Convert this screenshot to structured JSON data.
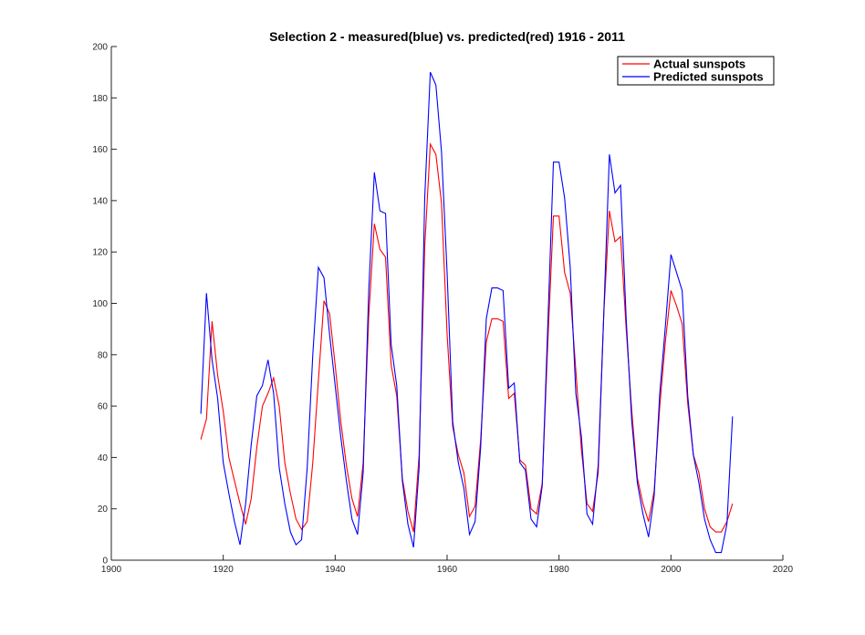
{
  "chart_data": {
    "type": "line",
    "title": "Selection 2 - measured(blue) vs. predicted(red) 1916 - 2011",
    "xlabel": "",
    "ylabel": "",
    "xlim": [
      1900,
      2020
    ],
    "ylim": [
      0,
      200
    ],
    "xticks": [
      1900,
      1920,
      1940,
      1960,
      1980,
      2000,
      2020
    ],
    "yticks": [
      0,
      20,
      40,
      60,
      80,
      100,
      120,
      140,
      160,
      180,
      200
    ],
    "grid": false,
    "legend_position": "top-right",
    "colors": {
      "red": "#ff0000",
      "blue": "#0000ff",
      "axis": "#262626"
    },
    "series": [
      {
        "name": "Actual sunspots",
        "color": "red",
        "x": [
          1916,
          1917,
          1918,
          1919,
          1920,
          1921,
          1922,
          1923,
          1924,
          1925,
          1926,
          1927,
          1928,
          1929,
          1930,
          1931,
          1932,
          1933,
          1934,
          1935,
          1936,
          1937,
          1938,
          1939,
          1940,
          1941,
          1942,
          1943,
          1944,
          1945,
          1946,
          1947,
          1948,
          1949,
          1950,
          1951,
          1952,
          1953,
          1954,
          1955,
          1956,
          1957,
          1958,
          1959,
          1960,
          1961,
          1962,
          1963,
          1964,
          1965,
          1966,
          1967,
          1968,
          1969,
          1970,
          1971,
          1972,
          1973,
          1974,
          1975,
          1976,
          1977,
          1978,
          1979,
          1980,
          1981,
          1982,
          1983,
          1984,
          1985,
          1986,
          1987,
          1988,
          1989,
          1990,
          1991,
          1992,
          1993,
          1994,
          1995,
          1996,
          1997,
          1998,
          1999,
          2000,
          2001,
          2002,
          2003,
          2004,
          2005,
          2006,
          2007,
          2008,
          2009,
          2010,
          2011
        ],
        "values": [
          47,
          55,
          93,
          72,
          58,
          40,
          31,
          22,
          14,
          24,
          44,
          60,
          65,
          71,
          60,
          38,
          26,
          16,
          12,
          15,
          38,
          70,
          101,
          96,
          76,
          54,
          37,
          24,
          17,
          38,
          95,
          131,
          121,
          118,
          76,
          64,
          32,
          19,
          11,
          41,
          122,
          162,
          158,
          139,
          88,
          52,
          41,
          34,
          17,
          21,
          47,
          85,
          94,
          94,
          93,
          63,
          65,
          39,
          37,
          20,
          18,
          30,
          85,
          134,
          134,
          112,
          104,
          74,
          43,
          22,
          19,
          34,
          96,
          136,
          124,
          126,
          90,
          58,
          32,
          22,
          15,
          27,
          60,
          85,
          105,
          99,
          92,
          61,
          41,
          34,
          20,
          13,
          11,
          11,
          15,
          22
        ]
      },
      {
        "name": "Predicted sunspots",
        "color": "blue",
        "x": [
          1916,
          1917,
          1918,
          1919,
          1920,
          1921,
          1922,
          1923,
          1924,
          1925,
          1926,
          1927,
          1928,
          1929,
          1930,
          1931,
          1932,
          1933,
          1934,
          1935,
          1936,
          1937,
          1938,
          1939,
          1940,
          1941,
          1942,
          1943,
          1944,
          1945,
          1946,
          1947,
          1948,
          1949,
          1950,
          1951,
          1952,
          1953,
          1954,
          1955,
          1956,
          1957,
          1958,
          1959,
          1960,
          1961,
          1962,
          1963,
          1964,
          1965,
          1966,
          1967,
          1968,
          1969,
          1970,
          1971,
          1972,
          1973,
          1974,
          1975,
          1976,
          1977,
          1978,
          1979,
          1980,
          1981,
          1982,
          1983,
          1984,
          1985,
          1986,
          1987,
          1988,
          1989,
          1990,
          1991,
          1992,
          1993,
          1994,
          1995,
          1996,
          1997,
          1998,
          1999,
          2000,
          2001,
          2002,
          2003,
          2004,
          2005,
          2006,
          2007,
          2008,
          2009,
          2010,
          2011
        ],
        "values": [
          57,
          104,
          78,
          63,
          38,
          26,
          15,
          6,
          22,
          45,
          64,
          68,
          78,
          65,
          36,
          22,
          11,
          6,
          8,
          36,
          80,
          114,
          110,
          88,
          68,
          48,
          31,
          16,
          10,
          34,
          105,
          151,
          136,
          135,
          84,
          68,
          31,
          14,
          5,
          36,
          141,
          190,
          185,
          159,
          112,
          54,
          38,
          28,
          10,
          15,
          44,
          94,
          106,
          106,
          105,
          67,
          69,
          38,
          35,
          16,
          13,
          29,
          92,
          155,
          155,
          141,
          114,
          65,
          48,
          18,
          14,
          37,
          96,
          158,
          143,
          146,
          94,
          54,
          30,
          18,
          9,
          25,
          65,
          91,
          119,
          112,
          105,
          64,
          41,
          30,
          16,
          8,
          3,
          3,
          14,
          56
        ]
      }
    ]
  }
}
